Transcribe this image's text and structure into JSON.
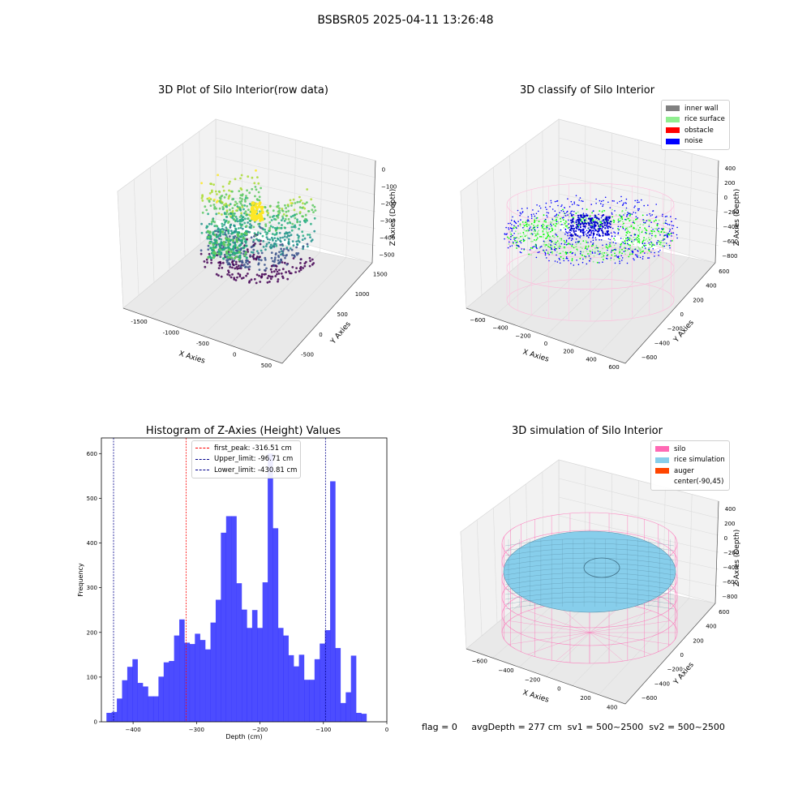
{
  "suptitle": "BSBSR05 2025-04-11 13:26:48",
  "panels": {
    "raw": {
      "title": "3D Plot of Silo Interior(row data)",
      "xlabel": "X Axies",
      "ylabel": "Y Axies",
      "zlabel": "Z Axies (Depth)",
      "xticks": [
        "-1500",
        "-1000",
        "-500",
        "0",
        "500"
      ],
      "yticks": [
        "-500",
        "0",
        "500",
        "1000",
        "1500"
      ],
      "zticks": [
        "0",
        "−100",
        "−200",
        "−300",
        "−400",
        "−500"
      ]
    },
    "classify": {
      "title": "3D classify of Silo Interior",
      "xlabel": "X Axies",
      "ylabel": "Y Axies",
      "zlabel": "Z Axies (Depth)",
      "xticks": [
        "−600",
        "−400",
        "−200",
        "0",
        "200",
        "400",
        "600"
      ],
      "yticks": [
        "−600",
        "−400",
        "−200",
        "0",
        "200",
        "400",
        "600"
      ],
      "zticks": [
        "400",
        "200",
        "0",
        "−200",
        "−400",
        "−600",
        "−800"
      ],
      "legend": [
        {
          "label": "inner wall",
          "color": "#808080"
        },
        {
          "label": "rice surface",
          "color": "#90ee90"
        },
        {
          "label": "obstacle",
          "color": "#ff0000"
        },
        {
          "label": "noise",
          "color": "#0000ff"
        }
      ]
    },
    "simulation": {
      "title": "3D simulation of Silo Interior",
      "xlabel": "X Axies",
      "ylabel": "Y Axies",
      "zlabel": "Z Axies (Depth)",
      "xticks": [
        "−600",
        "−400",
        "−200",
        "0",
        "200",
        "400"
      ],
      "yticks": [
        "−600",
        "−400",
        "−200",
        "0",
        "200",
        "400",
        "600"
      ],
      "zticks": [
        "400",
        "200",
        "0",
        "−200",
        "−400",
        "−600",
        "−800"
      ],
      "legend": [
        {
          "label": "silo",
          "color": "#ff69b4"
        },
        {
          "label": "rice simulation",
          "color": "#87ceeb"
        },
        {
          "label": "auger",
          "color": "#ff4500"
        },
        {
          "label": "center(-90,45)",
          "color": "#ffffff"
        }
      ]
    }
  },
  "chart_data": {
    "type": "bar",
    "title": "Histogram of Z-Axies (Height) Values",
    "xlabel": "Depth (cm)",
    "ylabel": "Frequency",
    "xlim": [
      -450,
      0
    ],
    "ylim": [
      0,
      635
    ],
    "bar_color": "#0000ff",
    "bar_opacity": 0.7,
    "bin_start": -442,
    "bin_width": 8.2,
    "values": [
      20,
      22,
      52,
      93,
      123,
      140,
      87,
      79,
      57,
      57,
      101,
      133,
      136,
      193,
      229,
      177,
      174,
      197,
      183,
      162,
      222,
      273,
      423,
      460,
      460,
      310,
      251,
      210,
      250,
      210,
      312,
      600,
      433,
      210,
      193,
      149,
      124,
      150,
      94,
      94,
      140,
      175,
      205,
      538,
      165,
      42,
      66,
      148,
      20,
      18
    ],
    "xticks": [
      -400,
      -300,
      -200,
      -100,
      0
    ],
    "yticks": [
      0,
      100,
      200,
      300,
      400,
      500,
      600
    ],
    "vlines": [
      {
        "label": "first_peak: -316.51 cm",
        "x": -316.51,
        "color": "#ff0000"
      },
      {
        "label": "Upper_limit: -96.71 cm",
        "x": -96.71,
        "color": "#00008b"
      },
      {
        "label": "Lower_limit: -430.81 cm",
        "x": -430.81,
        "color": "#00008b"
      }
    ]
  },
  "footer": {
    "flag": "flag = 0",
    "avg": "avgDepth = 277 cm",
    "sv1": "sv1 = 500~2500",
    "sv2": "sv2 = 500~2500"
  }
}
